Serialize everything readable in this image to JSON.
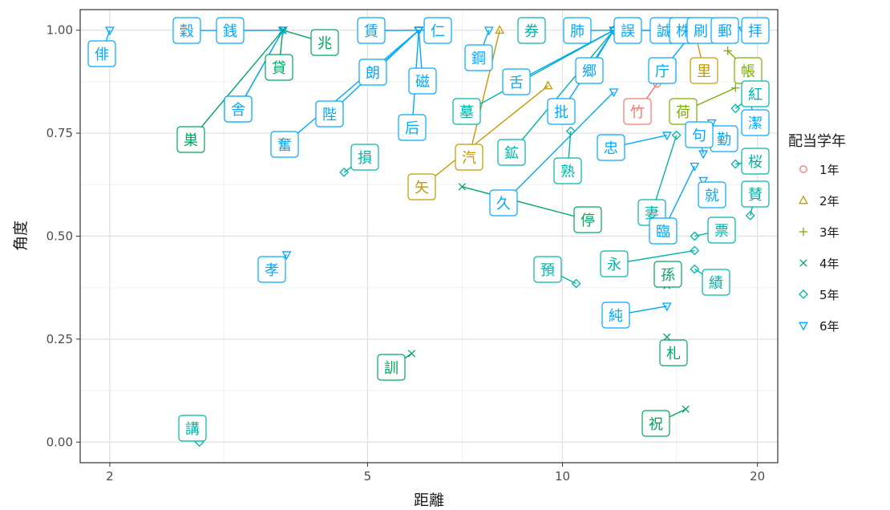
{
  "chart_data": {
    "type": "scatter",
    "xlabel": "距離",
    "ylabel": "角度",
    "x_scale": "log",
    "xlim": [
      1.8,
      21.5
    ],
    "ylim": [
      -0.05,
      1.05
    ],
    "x_ticks": [
      {
        "value": 2,
        "label": "2"
      },
      {
        "value": 5,
        "label": "5"
      },
      {
        "value": 10,
        "label": "10"
      },
      {
        "value": 20,
        "label": "20"
      }
    ],
    "y_ticks": [
      {
        "value": 0.0,
        "label": "0.00"
      },
      {
        "value": 0.25,
        "label": "0.25"
      },
      {
        "value": 0.5,
        "label": "0.50"
      },
      {
        "value": 0.75,
        "label": "0.75"
      },
      {
        "value": 1.0,
        "label": "1.00"
      }
    ],
    "grid": true,
    "legend": {
      "title": "配当学年",
      "position": "right",
      "entries": [
        {
          "label": "1年",
          "shape": "circle",
          "color": "#f8766d"
        },
        {
          "label": "2年",
          "shape": "triangle",
          "color": "#c49a00"
        },
        {
          "label": "3年",
          "shape": "plus",
          "color": "#7cae00"
        },
        {
          "label": "4年",
          "shape": "cross",
          "color": "#00a65f"
        },
        {
          "label": "5年",
          "shape": "diamond",
          "color": "#00b5a8"
        },
        {
          "label": "6年",
          "shape": "triangle-down",
          "color": "#00a9ff"
        }
      ]
    },
    "series": [
      {
        "name": "1年",
        "points": [
          {
            "x": 14.0,
            "y": 0.87,
            "label": "竹"
          }
        ]
      },
      {
        "name": "2年",
        "points": [
          {
            "x": 9.5,
            "y": 0.865,
            "label": "矢"
          },
          {
            "x": 8.0,
            "y": 1.0,
            "label": "汽"
          },
          {
            "x": 16.0,
            "y": 1.0,
            "label": "里"
          }
        ]
      },
      {
        "name": "3年",
        "points": [
          {
            "x": 18.5,
            "y": 0.86,
            "label": "荷"
          },
          {
            "x": 18.0,
            "y": 0.95,
            "label": "帳"
          }
        ]
      },
      {
        "name": "4年",
        "points": [
          {
            "x": 3.7,
            "y": 1.0,
            "label": "兆"
          },
          {
            "x": 3.7,
            "y": 1.0,
            "label": "貸"
          },
          {
            "x": 3.7,
            "y": 1.0,
            "label": "舎"
          },
          {
            "x": 3.7,
            "y": 1.0,
            "label": "巣"
          },
          {
            "x": 5.85,
            "y": 0.215,
            "label": "訓"
          },
          {
            "x": 7.0,
            "y": 0.62,
            "label": "停"
          },
          {
            "x": 14.5,
            "y": 0.38,
            "label": "孫"
          },
          {
            "x": 14.5,
            "y": 0.255,
            "label": "札"
          },
          {
            "x": 15.5,
            "y": 0.08,
            "label": "祝"
          }
        ]
      },
      {
        "name": "5年",
        "points": [
          {
            "x": 2.75,
            "y": 0.0,
            "label": "講"
          },
          {
            "x": 4.6,
            "y": 0.655,
            "label": "損"
          },
          {
            "x": 9.0,
            "y": 1.0,
            "label": "券"
          },
          {
            "x": 10.5,
            "y": 0.385,
            "label": "預"
          },
          {
            "x": 12.0,
            "y": 1.0,
            "label": "墓"
          },
          {
            "x": 12.0,
            "y": 1.0,
            "label": "鉱"
          },
          {
            "x": 10.3,
            "y": 0.755,
            "label": "熟"
          },
          {
            "x": 15.0,
            "y": 0.745,
            "label": "妻"
          },
          {
            "x": 16.0,
            "y": 0.42,
            "label": "績"
          },
          {
            "x": 16.0,
            "y": 0.465,
            "label": "永"
          },
          {
            "x": 18.5,
            "y": 0.81,
            "label": "紅"
          },
          {
            "x": 18.5,
            "y": 0.675,
            "label": "桜"
          },
          {
            "x": 19.5,
            "y": 0.55,
            "label": "賛"
          },
          {
            "x": 16.0,
            "y": 0.5,
            "label": "票"
          }
        ]
      },
      {
        "name": "6年",
        "points": [
          {
            "x": 2.0,
            "y": 1.0,
            "label": "俳"
          },
          {
            "x": 3.7,
            "y": 1.0,
            "label": "穀"
          },
          {
            "x": 3.7,
            "y": 1.0,
            "label": "銭"
          },
          {
            "x": 3.7,
            "y": 1.0,
            "label": "舎"
          },
          {
            "x": 3.75,
            "y": 0.455,
            "label": "孝"
          },
          {
            "x": 6.0,
            "y": 1.0,
            "label": "賃"
          },
          {
            "x": 6.0,
            "y": 1.0,
            "label": "朗"
          },
          {
            "x": 6.0,
            "y": 1.0,
            "label": "陛"
          },
          {
            "x": 6.0,
            "y": 1.0,
            "label": "奮"
          },
          {
            "x": 6.0,
            "y": 1.0,
            "label": "仁"
          },
          {
            "x": 6.0,
            "y": 1.0,
            "label": "磁"
          },
          {
            "x": 6.0,
            "y": 1.0,
            "label": "后"
          },
          {
            "x": 7.7,
            "y": 1.0,
            "label": "鋼"
          },
          {
            "x": 12.0,
            "y": 1.0,
            "label": "舌"
          },
          {
            "x": 12.0,
            "y": 1.0,
            "label": "肺"
          },
          {
            "x": 12.0,
            "y": 1.0,
            "label": "誤"
          },
          {
            "x": 12.0,
            "y": 1.0,
            "label": "誠"
          },
          {
            "x": 12.0,
            "y": 1.0,
            "label": "株"
          },
          {
            "x": 12.0,
            "y": 1.0,
            "label": "郷"
          },
          {
            "x": 12.0,
            "y": 1.0,
            "label": "批"
          },
          {
            "x": 12.0,
            "y": 0.85,
            "label": "久"
          },
          {
            "x": 14.5,
            "y": 0.745,
            "label": "忠"
          },
          {
            "x": 14.5,
            "y": 0.33,
            "label": "純"
          },
          {
            "x": 16.0,
            "y": 1.0,
            "label": "庁"
          },
          {
            "x": 16.5,
            "y": 1.0,
            "label": "刷"
          },
          {
            "x": 17.5,
            "y": 1.0,
            "label": "郵"
          },
          {
            "x": 19.0,
            "y": 1.0,
            "label": "拝"
          },
          {
            "x": 19.0,
            "y": 0.9,
            "label": "潔"
          },
          {
            "x": 17.0,
            "y": 0.775,
            "label": "勤"
          },
          {
            "x": 16.5,
            "y": 0.635,
            "label": "就"
          },
          {
            "x": 16.0,
            "y": 0.67,
            "label": "臨"
          },
          {
            "x": 16.5,
            "y": 0.7,
            "label": "句"
          }
        ]
      }
    ]
  }
}
